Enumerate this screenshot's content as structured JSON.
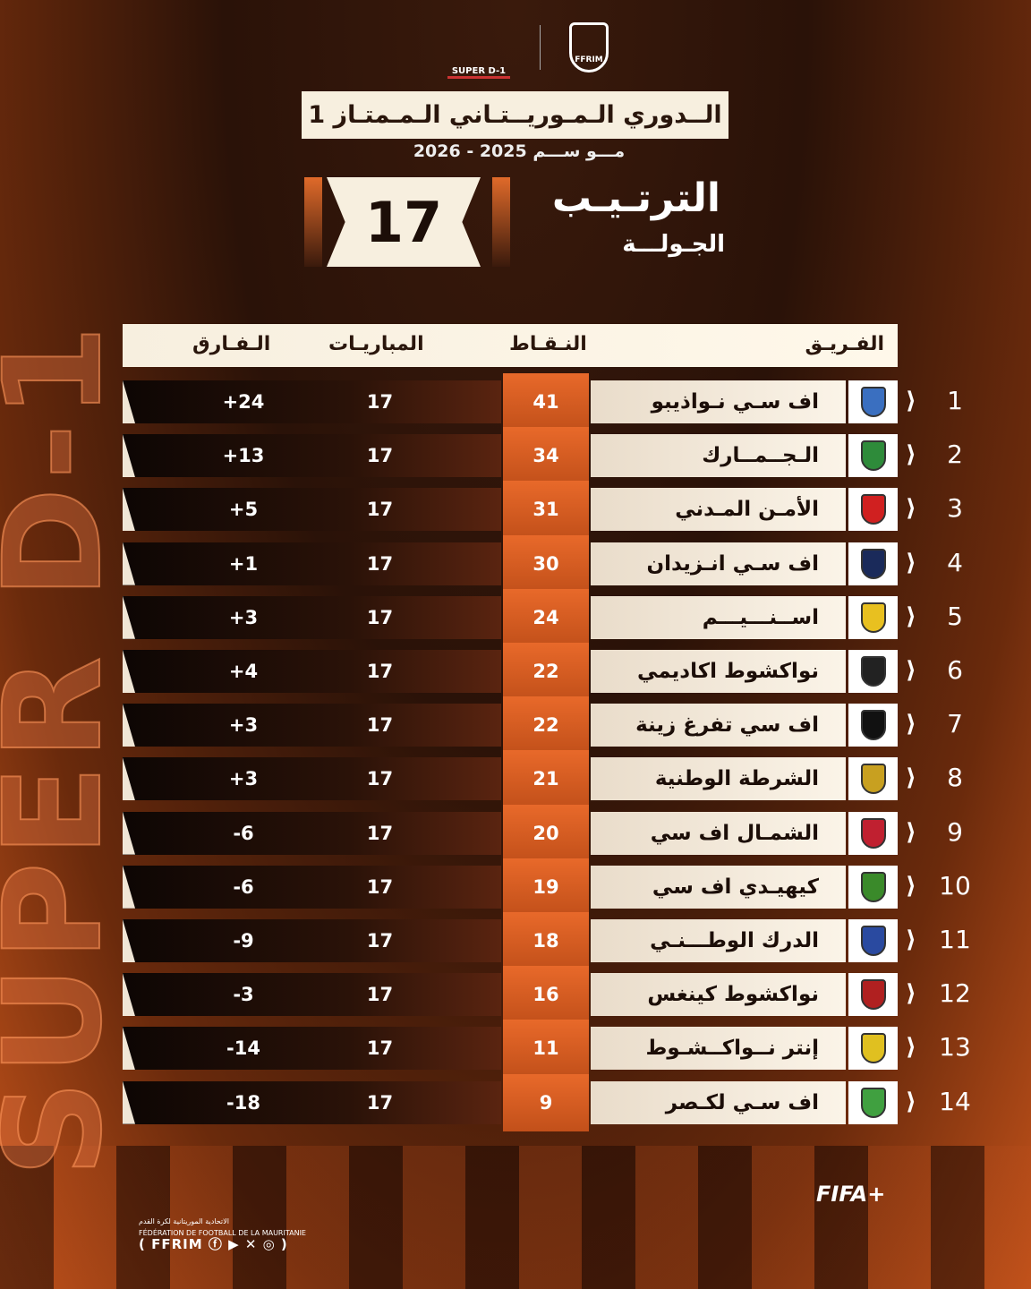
{
  "background_text": "SUPER D-1",
  "logos": {
    "league": "SUPER D-1",
    "federation": "FFRIM"
  },
  "title": "الــدوري الـمـوريــتـاني الـمـمتـاز 1",
  "season": "مـــو ســـم 2025 - 2026",
  "round": {
    "number": "17",
    "title": "الترتـيـب",
    "subtitle": "الجـولـــة"
  },
  "headers": {
    "team": "الفـريـق",
    "points": "النـقـاط",
    "played": "المباريـات",
    "diff": "الـفـارق"
  },
  "rows": [
    {
      "rank": "1",
      "team": "اف سـي نـواذيبو",
      "points": "41",
      "played": "17",
      "diff": "+24",
      "color": "#3a6fc0"
    },
    {
      "rank": "2",
      "team": "الـجــمــارك",
      "points": "34",
      "played": "17",
      "diff": "+13",
      "color": "#2e8b3a"
    },
    {
      "rank": "3",
      "team": "الأمـن المـدني",
      "points": "31",
      "played": "17",
      "diff": "+5",
      "color": "#d02020"
    },
    {
      "rank": "4",
      "team": "اف سـي انـزيدان",
      "points": "30",
      "played": "17",
      "diff": "+1",
      "color": "#1a2a5a"
    },
    {
      "rank": "5",
      "team": "اســنـــيـــم",
      "points": "24",
      "played": "17",
      "diff": "+3",
      "color": "#e8c020"
    },
    {
      "rank": "6",
      "team": "نواكشوط اكاديمي",
      "points": "22",
      "played": "17",
      "diff": "+4",
      "color": "#222222"
    },
    {
      "rank": "7",
      "team": "اف سي تفرغ زينة",
      "points": "22",
      "played": "17",
      "diff": "+3",
      "color": "#111111"
    },
    {
      "rank": "8",
      "team": "الشرطة الوطنية",
      "points": "21",
      "played": "17",
      "diff": "+3",
      "color": "#c8a020"
    },
    {
      "rank": "9",
      "team": "الشمـال اف سي",
      "points": "20",
      "played": "17",
      "diff": "-6",
      "color": "#c02030"
    },
    {
      "rank": "10",
      "team": "كيهيـدي اف سي",
      "points": "19",
      "played": "17",
      "diff": "-6",
      "color": "#3a8a2a"
    },
    {
      "rank": "11",
      "team": "الدرك الوطـــنـي",
      "points": "18",
      "played": "17",
      "diff": "-9",
      "color": "#2a4aa0"
    },
    {
      "rank": "12",
      "team": "نواكشوط كينغس",
      "points": "16",
      "played": "17",
      "diff": "-3",
      "color": "#b02020"
    },
    {
      "rank": "13",
      "team": "إنتر نــواكــشـوط",
      "points": "11",
      "played": "17",
      "diff": "-14",
      "color": "#e0c020"
    },
    {
      "rank": "14",
      "team": "اف سـي لكـصر",
      "points": "9",
      "played": "17",
      "diff": "-18",
      "color": "#40a040"
    }
  ],
  "footer": {
    "arabic": "الاتحادية الموريتانية لكرة القدم",
    "french": "FÉDÉRATION DE FOOTBALL DE LA MAURITANIE",
    "handle": "( FFRIM ⓕ ▶ ✕ ◎ )"
  },
  "partner": "FIFA+"
}
